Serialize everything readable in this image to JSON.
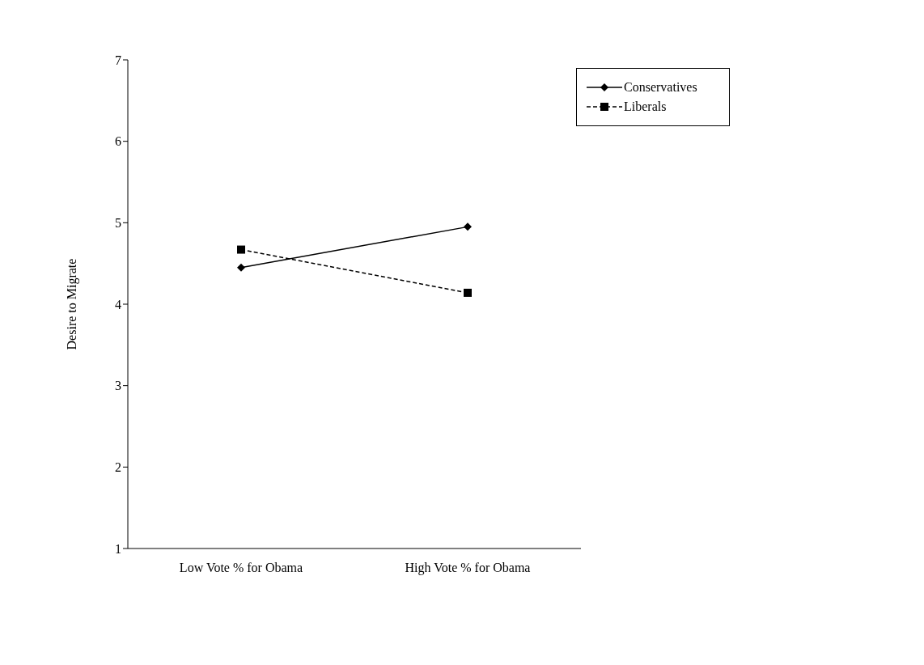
{
  "chart_data": {
    "type": "line",
    "ylabel": "Desire to Migrate",
    "categories": [
      "Low Vote % for Obama",
      "High Vote % for Obama"
    ],
    "series": [
      {
        "name": "Conservatives",
        "color": "#000000",
        "values": [
          4.45,
          4.95
        ],
        "marker": "diamond",
        "line_style": "solid"
      },
      {
        "name": "Liberals",
        "color": "#000000",
        "values": [
          4.67,
          4.14
        ],
        "marker": "square",
        "line_style": "dashed"
      }
    ],
    "ylim": [
      1,
      7
    ],
    "yticks": [
      1,
      2,
      3,
      4,
      5,
      6,
      7
    ],
    "grid": false,
    "legend": "top right"
  }
}
